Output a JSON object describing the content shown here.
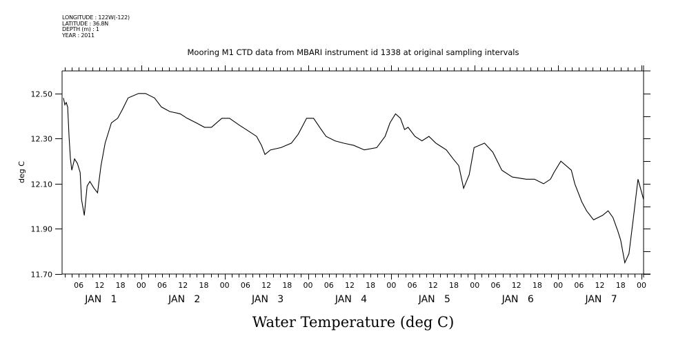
{
  "header_meta": [
    "LONGITUDE : 122W(-122)",
    "LATITUDE : 36.8N",
    "DEPTH (m) : 1",
    "YEAR : 2011"
  ],
  "chart_data": {
    "type": "line",
    "title": "Mooring M1 CTD data from MBARI instrument id 1338 at original sampling intervals",
    "xlabel": "",
    "ylabel": "deg C",
    "bottom_label": "Water Temperature (deg C)",
    "x_units": "hours since JAN 1 00:00",
    "xlim": [
      1.2,
      168.6
    ],
    "ylim": [
      11.7,
      12.6
    ],
    "yticks": [
      11.7,
      11.9,
      12.1,
      12.3,
      12.5
    ],
    "ytick_labels": [
      "11.70",
      "11.90",
      "12.10",
      "12.30",
      "12.50"
    ],
    "yminor": [
      11.8,
      12.0,
      12.2,
      12.4
    ],
    "xtick_hours": [
      6,
      12,
      18,
      24,
      30,
      36,
      42,
      48,
      54,
      60,
      66,
      72,
      78,
      84,
      90,
      96,
      102,
      108,
      114,
      120,
      126,
      132,
      138,
      144,
      150,
      156,
      162,
      168
    ],
    "xtick_labels": [
      "06",
      "12",
      "18",
      "00",
      "06",
      "12",
      "18",
      "00",
      "06",
      "12",
      "18",
      "00",
      "06",
      "12",
      "18",
      "00",
      "06",
      "12",
      "18",
      "00",
      "06",
      "12",
      "18",
      "00",
      "06",
      "12",
      "18",
      "00"
    ],
    "day_labels": [
      {
        "label": "JAN   1",
        "hour": 12
      },
      {
        "label": "JAN   2",
        "hour": 36
      },
      {
        "label": "JAN   3",
        "hour": 60
      },
      {
        "label": "JAN   4",
        "hour": 84
      },
      {
        "label": "JAN   5",
        "hour": 108
      },
      {
        "label": "JAN   6",
        "hour": 132
      },
      {
        "label": "JAN   7",
        "hour": 156
      }
    ],
    "grid": false,
    "legend": "none",
    "series": [
      {
        "name": "Water Temperature",
        "x": [
          1.6,
          2.0,
          2.4,
          2.8,
          3.2,
          3.6,
          4.0,
          4.8,
          5.6,
          6.4,
          6.8,
          7.6,
          8.4,
          9.2,
          10.4,
          11.4,
          12.4,
          13.6,
          15.4,
          17.2,
          18.6,
          20.2,
          23.2,
          25.2,
          27.8,
          29.8,
          32.2,
          35.2,
          37.2,
          39.8,
          42.2,
          44.2,
          47.2,
          49.4,
          52.2,
          54.2,
          57.2,
          58.6,
          59.6,
          61.2,
          64.2,
          67.2,
          69.2,
          71.6,
          73.6,
          75.8,
          77.2,
          79.8,
          82.2,
          85.2,
          88.2,
          91.8,
          94.2,
          95.6,
          97.2,
          98.6,
          99.8,
          100.8,
          102.8,
          104.8,
          106.8,
          108.8,
          111.8,
          113.8,
          115.4,
          116.8,
          118.4,
          119.8,
          122.8,
          125.2,
          127.8,
          130.8,
          134.8,
          137.2,
          139.8,
          141.8,
          142.8,
          144.8,
          147.8,
          148.8,
          150.8,
          152.2,
          154.2,
          156.8,
          158.4,
          159.8,
          161.2,
          162.0,
          163.2,
          164.4,
          165.6,
          167.0,
          168.6
        ],
        "values": [
          12.48,
          12.45,
          12.46,
          12.44,
          12.31,
          12.21,
          12.16,
          12.21,
          12.19,
          12.15,
          12.03,
          11.96,
          12.09,
          12.11,
          12.08,
          12.06,
          12.18,
          12.28,
          12.37,
          12.39,
          12.43,
          12.48,
          12.5,
          12.5,
          12.48,
          12.44,
          12.42,
          12.41,
          12.39,
          12.37,
          12.35,
          12.35,
          12.39,
          12.39,
          12.36,
          12.34,
          12.31,
          12.27,
          12.23,
          12.25,
          12.26,
          12.28,
          12.32,
          12.39,
          12.39,
          12.34,
          12.31,
          12.29,
          12.28,
          12.27,
          12.25,
          12.26,
          12.31,
          12.37,
          12.41,
          12.39,
          12.34,
          12.35,
          12.31,
          12.29,
          12.31,
          12.28,
          12.25,
          12.21,
          12.18,
          12.08,
          12.14,
          12.26,
          12.28,
          12.24,
          12.16,
          12.13,
          12.12,
          12.12,
          12.1,
          12.12,
          12.15,
          12.2,
          12.16,
          12.1,
          12.02,
          11.98,
          11.94,
          11.96,
          11.98,
          11.95,
          11.89,
          11.85,
          11.75,
          11.79,
          11.94,
          12.12,
          12.03
        ]
      }
    ]
  }
}
